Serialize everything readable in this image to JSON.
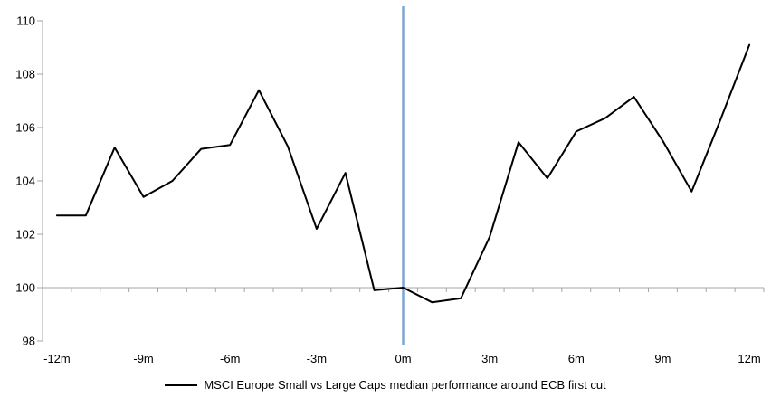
{
  "chart_data": {
    "type": "line",
    "x": [
      -12,
      -11,
      -10,
      -9,
      -8,
      -7,
      -6,
      -5,
      -4,
      -3,
      -2,
      -1,
      0,
      1,
      2,
      3,
      4,
      5,
      6,
      7,
      8,
      9,
      10,
      11,
      12
    ],
    "series": [
      {
        "name": "MSCI Europe Small vs Large Caps median performance around ECB first cut",
        "color": "#000000",
        "values": [
          102.7,
          102.7,
          105.25,
          103.4,
          104.0,
          105.2,
          105.35,
          107.4,
          105.3,
          102.2,
          104.3,
          99.9,
          100.0,
          99.45,
          99.6,
          101.9,
          105.45,
          104.1,
          105.85,
          106.35,
          107.15,
          105.5,
          103.6,
          106.3,
          109.1
        ]
      }
    ],
    "title": "",
    "xlabel": "",
    "ylabel": "",
    "xlim": [
      -12.5,
      12.5
    ],
    "ylim": [
      98,
      110
    ],
    "y_ticks": [
      98,
      100,
      102,
      104,
      106,
      108,
      110
    ],
    "x_tick_positions": [
      -12,
      -9,
      -6,
      -3,
      0,
      3,
      6,
      9,
      12
    ],
    "x_tick_labels": [
      "-12m",
      "-9m",
      "-6m",
      "-3m",
      "0m",
      "3m",
      "6m",
      "9m",
      "12m"
    ],
    "grid": false,
    "baseline_value": 100,
    "reference_line": {
      "x": 0,
      "color": "#7EA6D3"
    },
    "axis_color": "#A6A6A6",
    "label_color": "#000000",
    "legend": {
      "position": "bottom-center",
      "label": "MSCI Europe Small vs Large Caps median performance around ECB first cut"
    }
  }
}
